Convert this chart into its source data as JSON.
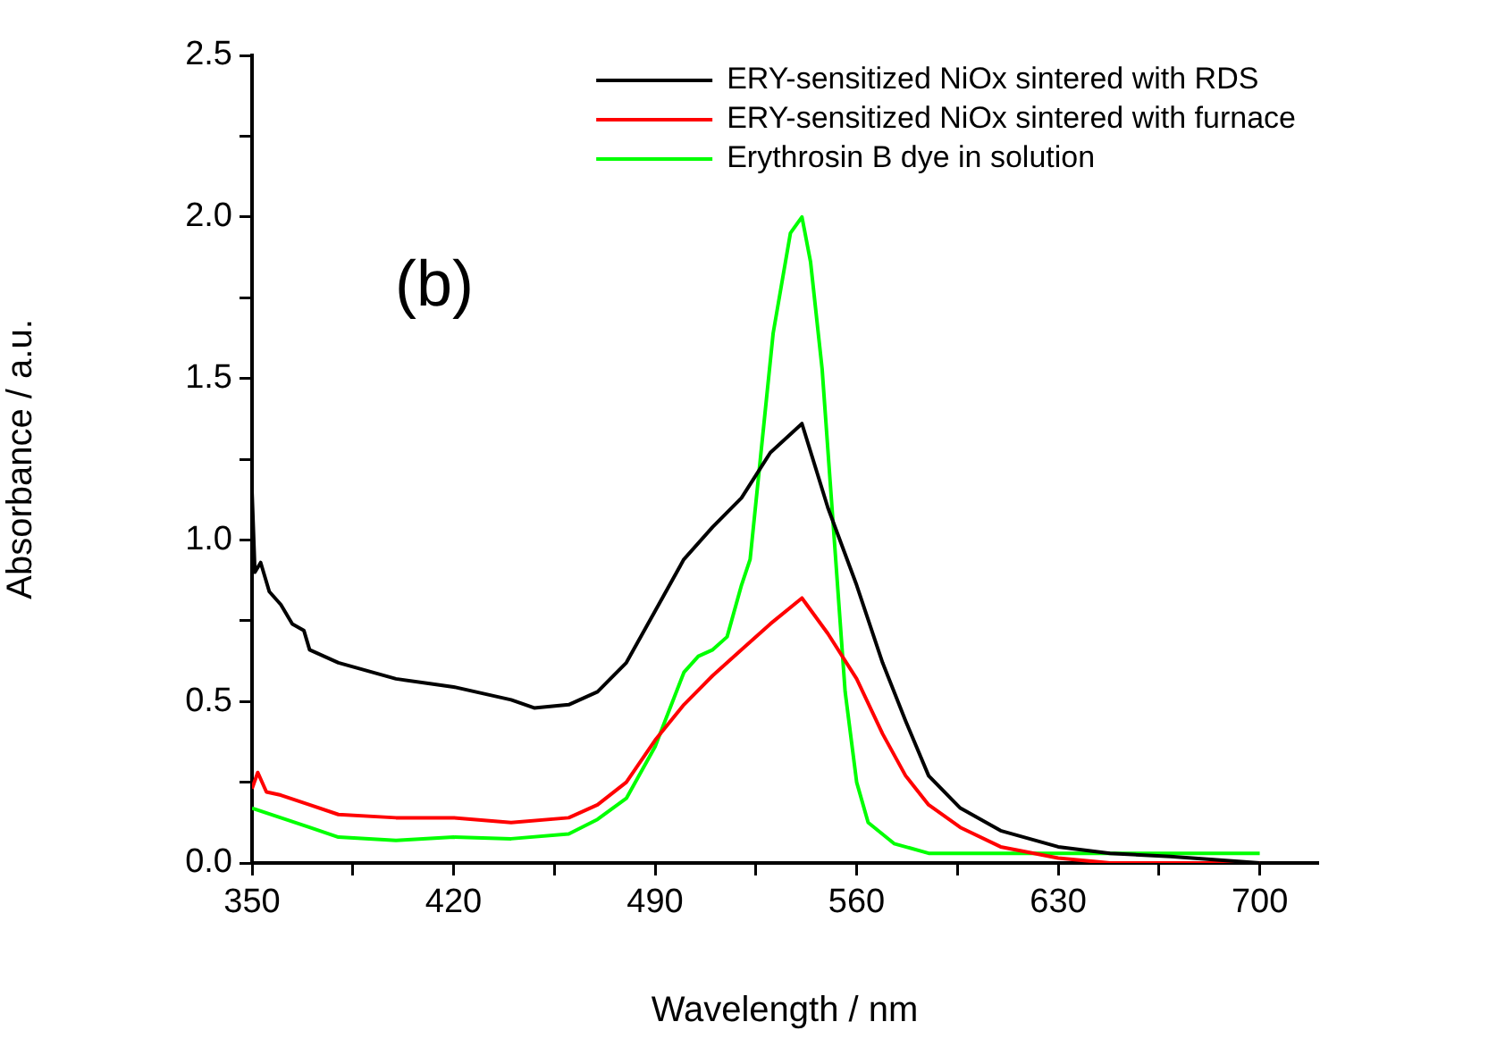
{
  "chart_data": {
    "type": "line",
    "xlabel": "Wavelength / nm",
    "ylabel": "Absorbance / a.u.",
    "annotations": [
      "(b)"
    ],
    "xlim": [
      350,
      720
    ],
    "xticks": [
      350,
      {
        "value": 385,
        "label": null
      },
      420,
      {
        "value": 455,
        "label": null
      },
      490,
      {
        "value": 525,
        "label": null
      },
      560,
      {
        "value": 595,
        "label": null
      },
      630,
      {
        "value": 665,
        "label": null
      },
      700
    ],
    "ylim": [
      0,
      2.5
    ],
    "yticks": [
      {
        "value": 0,
        "label": "0.0"
      },
      {
        "value": 0.25,
        "label": null
      },
      0.5,
      {
        "value": 0.75,
        "label": null
      },
      {
        "value": 1,
        "label": "1.0"
      },
      {
        "value": 1.25,
        "label": null
      },
      1.5,
      {
        "value": 1.75,
        "label": null
      },
      {
        "value": 2,
        "label": "2.0"
      },
      {
        "value": 2.25,
        "label": null
      },
      2.5
    ],
    "grid": false,
    "legend": "top right",
    "marker": "none",
    "line_style": "solid",
    "series": [
      {
        "name": "ERY-sensitized NiOx sintered with RDS",
        "color": "#000000",
        "x": [
          350,
          351,
          353,
          356,
          360,
          364,
          368,
          370,
          380,
          400,
          420,
          440,
          448,
          460,
          470,
          480,
          490,
          500,
          510,
          520,
          530,
          541,
          550,
          560,
          569,
          577,
          585,
          596,
          610,
          630,
          648,
          669,
          700
        ],
        "values": [
          1.15,
          0.9,
          0.93,
          0.84,
          0.8,
          0.74,
          0.72,
          0.66,
          0.62,
          0.57,
          0.545,
          0.505,
          0.48,
          0.49,
          0.53,
          0.62,
          0.78,
          0.94,
          1.04,
          1.13,
          1.27,
          1.36,
          1.1,
          0.86,
          0.62,
          0.44,
          0.27,
          0.17,
          0.1,
          0.05,
          0.03,
          0.02,
          0.0
        ]
      },
      {
        "name": "ERY-sensitized NiOx sintered with furnace",
        "color": "#ff0000",
        "x": [
          350,
          352,
          355,
          360,
          370,
          380,
          400,
          420,
          440,
          460,
          470,
          480,
          490,
          500,
          510,
          520,
          530,
          541,
          550,
          560,
          569,
          577,
          585,
          596,
          610,
          630,
          648,
          700
        ],
        "values": [
          0.23,
          0.28,
          0.22,
          0.21,
          0.18,
          0.15,
          0.14,
          0.14,
          0.125,
          0.14,
          0.18,
          0.25,
          0.38,
          0.49,
          0.58,
          0.66,
          0.74,
          0.82,
          0.71,
          0.57,
          0.4,
          0.27,
          0.18,
          0.11,
          0.05,
          0.015,
          0.0,
          0.0
        ]
      },
      {
        "name": "Erythrosin B dye in solution",
        "color": "#00ff00",
        "x": [
          350,
          360,
          370,
          380,
          400,
          420,
          440,
          460,
          470,
          480,
          490,
          500,
          505,
          510,
          515,
          520,
          523,
          531,
          537,
          541,
          544,
          548,
          552,
          556,
          560,
          564,
          573,
          585,
          627,
          700
        ],
        "values": [
          0.17,
          0.14,
          0.11,
          0.08,
          0.07,
          0.08,
          0.075,
          0.09,
          0.135,
          0.2,
          0.36,
          0.59,
          0.64,
          0.66,
          0.7,
          0.86,
          0.94,
          1.64,
          1.95,
          2.0,
          1.86,
          1.53,
          1.03,
          0.53,
          0.25,
          0.125,
          0.06,
          0.03,
          0.03,
          0.03
        ]
      }
    ]
  }
}
